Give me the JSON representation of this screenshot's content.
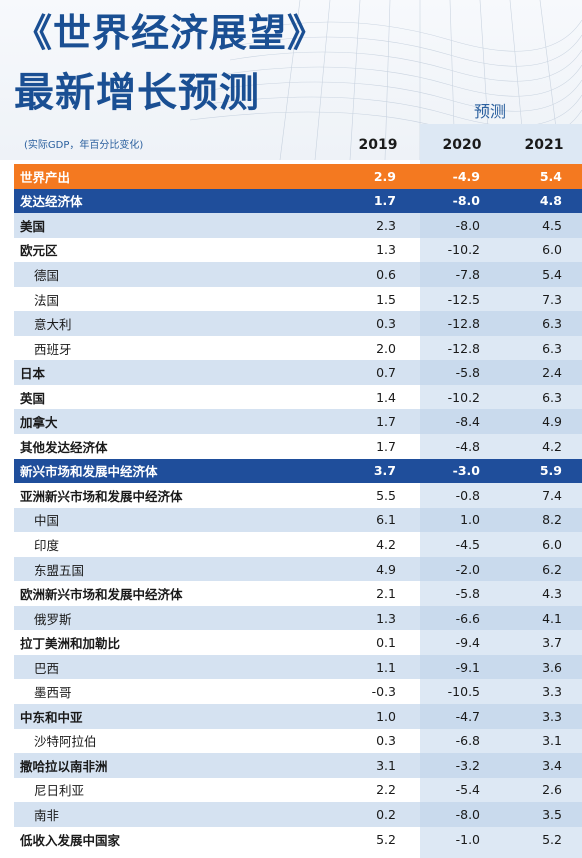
{
  "title_line1": "《世界经济展望》",
  "title_line2": "最新增长预测",
  "forecast_label": "预测",
  "units_note": "(实际GDP，年百分比变化)",
  "colors": {
    "title": "#1a4f93",
    "world_row": "#f47920",
    "group_row": "#1f4e9b",
    "alt_row": "#bed3e9",
    "forecast_shade": "#dde8f4"
  },
  "chart_data": {
    "type": "table",
    "columns": [
      "2019",
      "2020",
      "2021"
    ],
    "rows": [
      {
        "label": "世界产出",
        "style": "world",
        "values": [
          "2.9",
          "-4.9",
          "5.4"
        ]
      },
      {
        "label": "发达经济体",
        "style": "group",
        "values": [
          "1.7",
          "-8.0",
          "4.8"
        ]
      },
      {
        "label": "美国",
        "style": "bold",
        "values": [
          "2.3",
          "-8.0",
          "4.5"
        ]
      },
      {
        "label": "欧元区",
        "style": "bold",
        "values": [
          "1.3",
          "-10.2",
          "6.0"
        ]
      },
      {
        "label": "德国",
        "style": "sub",
        "values": [
          "0.6",
          "-7.8",
          "5.4"
        ]
      },
      {
        "label": "法国",
        "style": "sub",
        "values": [
          "1.5",
          "-12.5",
          "7.3"
        ]
      },
      {
        "label": "意大利",
        "style": "sub",
        "values": [
          "0.3",
          "-12.8",
          "6.3"
        ]
      },
      {
        "label": "西班牙",
        "style": "sub",
        "values": [
          "2.0",
          "-12.8",
          "6.3"
        ]
      },
      {
        "label": "日本",
        "style": "bold",
        "values": [
          "0.7",
          "-5.8",
          "2.4"
        ]
      },
      {
        "label": "英国",
        "style": "bold",
        "values": [
          "1.4",
          "-10.2",
          "6.3"
        ]
      },
      {
        "label": "加拿大",
        "style": "bold",
        "values": [
          "1.7",
          "-8.4",
          "4.9"
        ]
      },
      {
        "label": "其他发达经济体",
        "style": "bold",
        "values": [
          "1.7",
          "-4.8",
          "4.2"
        ]
      },
      {
        "label": "新兴市场和发展中经济体",
        "style": "group",
        "values": [
          "3.7",
          "-3.0",
          "5.9"
        ]
      },
      {
        "label": "亚洲新兴市场和发展中经济体",
        "style": "bold",
        "values": [
          "5.5",
          "-0.8",
          "7.4"
        ]
      },
      {
        "label": "中国",
        "style": "sub",
        "values": [
          "6.1",
          "1.0",
          "8.2"
        ]
      },
      {
        "label": "印度",
        "style": "sub",
        "values": [
          "4.2",
          "-4.5",
          "6.0"
        ]
      },
      {
        "label": "东盟五国",
        "style": "sub",
        "values": [
          "4.9",
          "-2.0",
          "6.2"
        ]
      },
      {
        "label": "欧洲新兴市场和发展中经济体",
        "style": "bold",
        "values": [
          "2.1",
          "-5.8",
          "4.3"
        ]
      },
      {
        "label": "俄罗斯",
        "style": "sub",
        "values": [
          "1.3",
          "-6.6",
          "4.1"
        ]
      },
      {
        "label": "拉丁美洲和加勒比",
        "style": "bold",
        "values": [
          "0.1",
          "-9.4",
          "3.7"
        ]
      },
      {
        "label": "巴西",
        "style": "sub",
        "values": [
          "1.1",
          "-9.1",
          "3.6"
        ]
      },
      {
        "label": "墨西哥",
        "style": "sub",
        "values": [
          "-0.3",
          "-10.5",
          "3.3"
        ]
      },
      {
        "label": "中东和中亚",
        "style": "bold",
        "values": [
          "1.0",
          "-4.7",
          "3.3"
        ]
      },
      {
        "label": "沙特阿拉伯",
        "style": "sub",
        "values": [
          "0.3",
          "-6.8",
          "3.1"
        ]
      },
      {
        "label": "撒哈拉以南非洲",
        "style": "bold",
        "values": [
          "3.1",
          "-3.2",
          "3.4"
        ]
      },
      {
        "label": "尼日利亚",
        "style": "sub",
        "values": [
          "2.2",
          "-5.4",
          "2.6"
        ]
      },
      {
        "label": "南非",
        "style": "sub",
        "values": [
          "0.2",
          "-8.0",
          "3.5"
        ]
      },
      {
        "label": "低收入发展中国家",
        "style": "bold",
        "values": [
          "5.2",
          "-1.0",
          "5.2"
        ]
      }
    ]
  }
}
